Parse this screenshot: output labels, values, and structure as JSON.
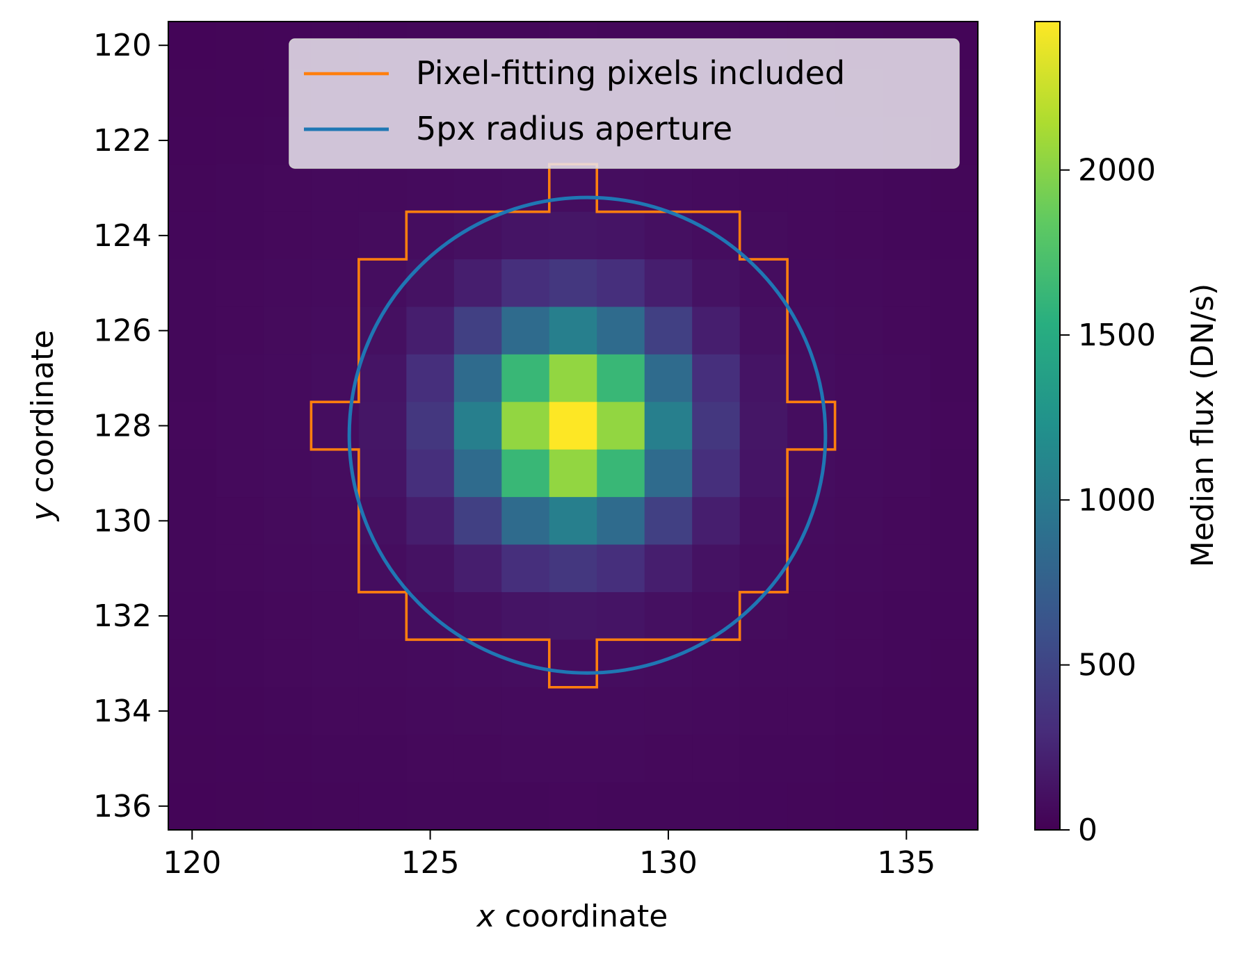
{
  "chart_data": {
    "type": "heatmap",
    "title": "",
    "xlabel_var": "x",
    "xlabel_rest": " coordinate",
    "ylabel_var": "y",
    "ylabel_rest": " coordinate",
    "x_range": [
      119.5,
      136.5
    ],
    "y_range": [
      119.5,
      136.5
    ],
    "y_inverted": true,
    "x_ticks": [
      120,
      125,
      130,
      135
    ],
    "y_ticks": [
      120,
      122,
      124,
      126,
      128,
      130,
      132,
      134,
      136
    ],
    "x_tick_labels": [
      "120",
      "125",
      "130",
      "135"
    ],
    "y_tick_labels": [
      "120",
      "122",
      "124",
      "126",
      "128",
      "130",
      "132",
      "134",
      "136"
    ],
    "colormap": "viridis",
    "colorbar": {
      "label": "Median flux (DN/s)",
      "vmin": 0,
      "vmax": 2450,
      "ticks": [
        0,
        500,
        1000,
        1500,
        2000
      ],
      "tick_labels": [
        "0",
        "500",
        "1000",
        "1500",
        "2000"
      ]
    },
    "grid": {
      "x_start": 120,
      "y_start": 120,
      "peak_x": 128,
      "peak_y": 128,
      "peak_flux": 2450,
      "psf_sigma": 1.45,
      "halo_amplitude": 90,
      "halo_sigma": 5.5,
      "background": 20
    },
    "series": [
      {
        "name": "Pixel-fitting pixels included",
        "kind": "pixel-outline",
        "color": "#ff7f0e",
        "outline_vertices": [
          [
            127.5,
            122.5
          ],
          [
            128.5,
            122.5
          ],
          [
            128.5,
            123.5
          ],
          [
            131.5,
            123.5
          ],
          [
            131.5,
            124.5
          ],
          [
            132.5,
            124.5
          ],
          [
            132.5,
            127.5
          ],
          [
            133.5,
            127.5
          ],
          [
            133.5,
            128.5
          ],
          [
            132.5,
            128.5
          ],
          [
            132.5,
            131.5
          ],
          [
            131.5,
            131.5
          ],
          [
            131.5,
            132.5
          ],
          [
            128.5,
            132.5
          ],
          [
            128.5,
            133.5
          ],
          [
            127.5,
            133.5
          ],
          [
            127.5,
            132.5
          ],
          [
            124.5,
            132.5
          ],
          [
            124.5,
            131.5
          ],
          [
            123.5,
            131.5
          ],
          [
            123.5,
            128.5
          ],
          [
            122.5,
            128.5
          ],
          [
            122.5,
            127.5
          ],
          [
            123.5,
            127.5
          ],
          [
            123.5,
            124.5
          ],
          [
            124.5,
            124.5
          ],
          [
            124.5,
            123.5
          ],
          [
            127.5,
            123.5
          ]
        ]
      },
      {
        "name": "5px radius aperture",
        "kind": "circle",
        "color": "#1f77b4",
        "center_x": 128.3,
        "center_y": 128.2,
        "radius": 5
      }
    ],
    "legend_position": "top-right"
  }
}
